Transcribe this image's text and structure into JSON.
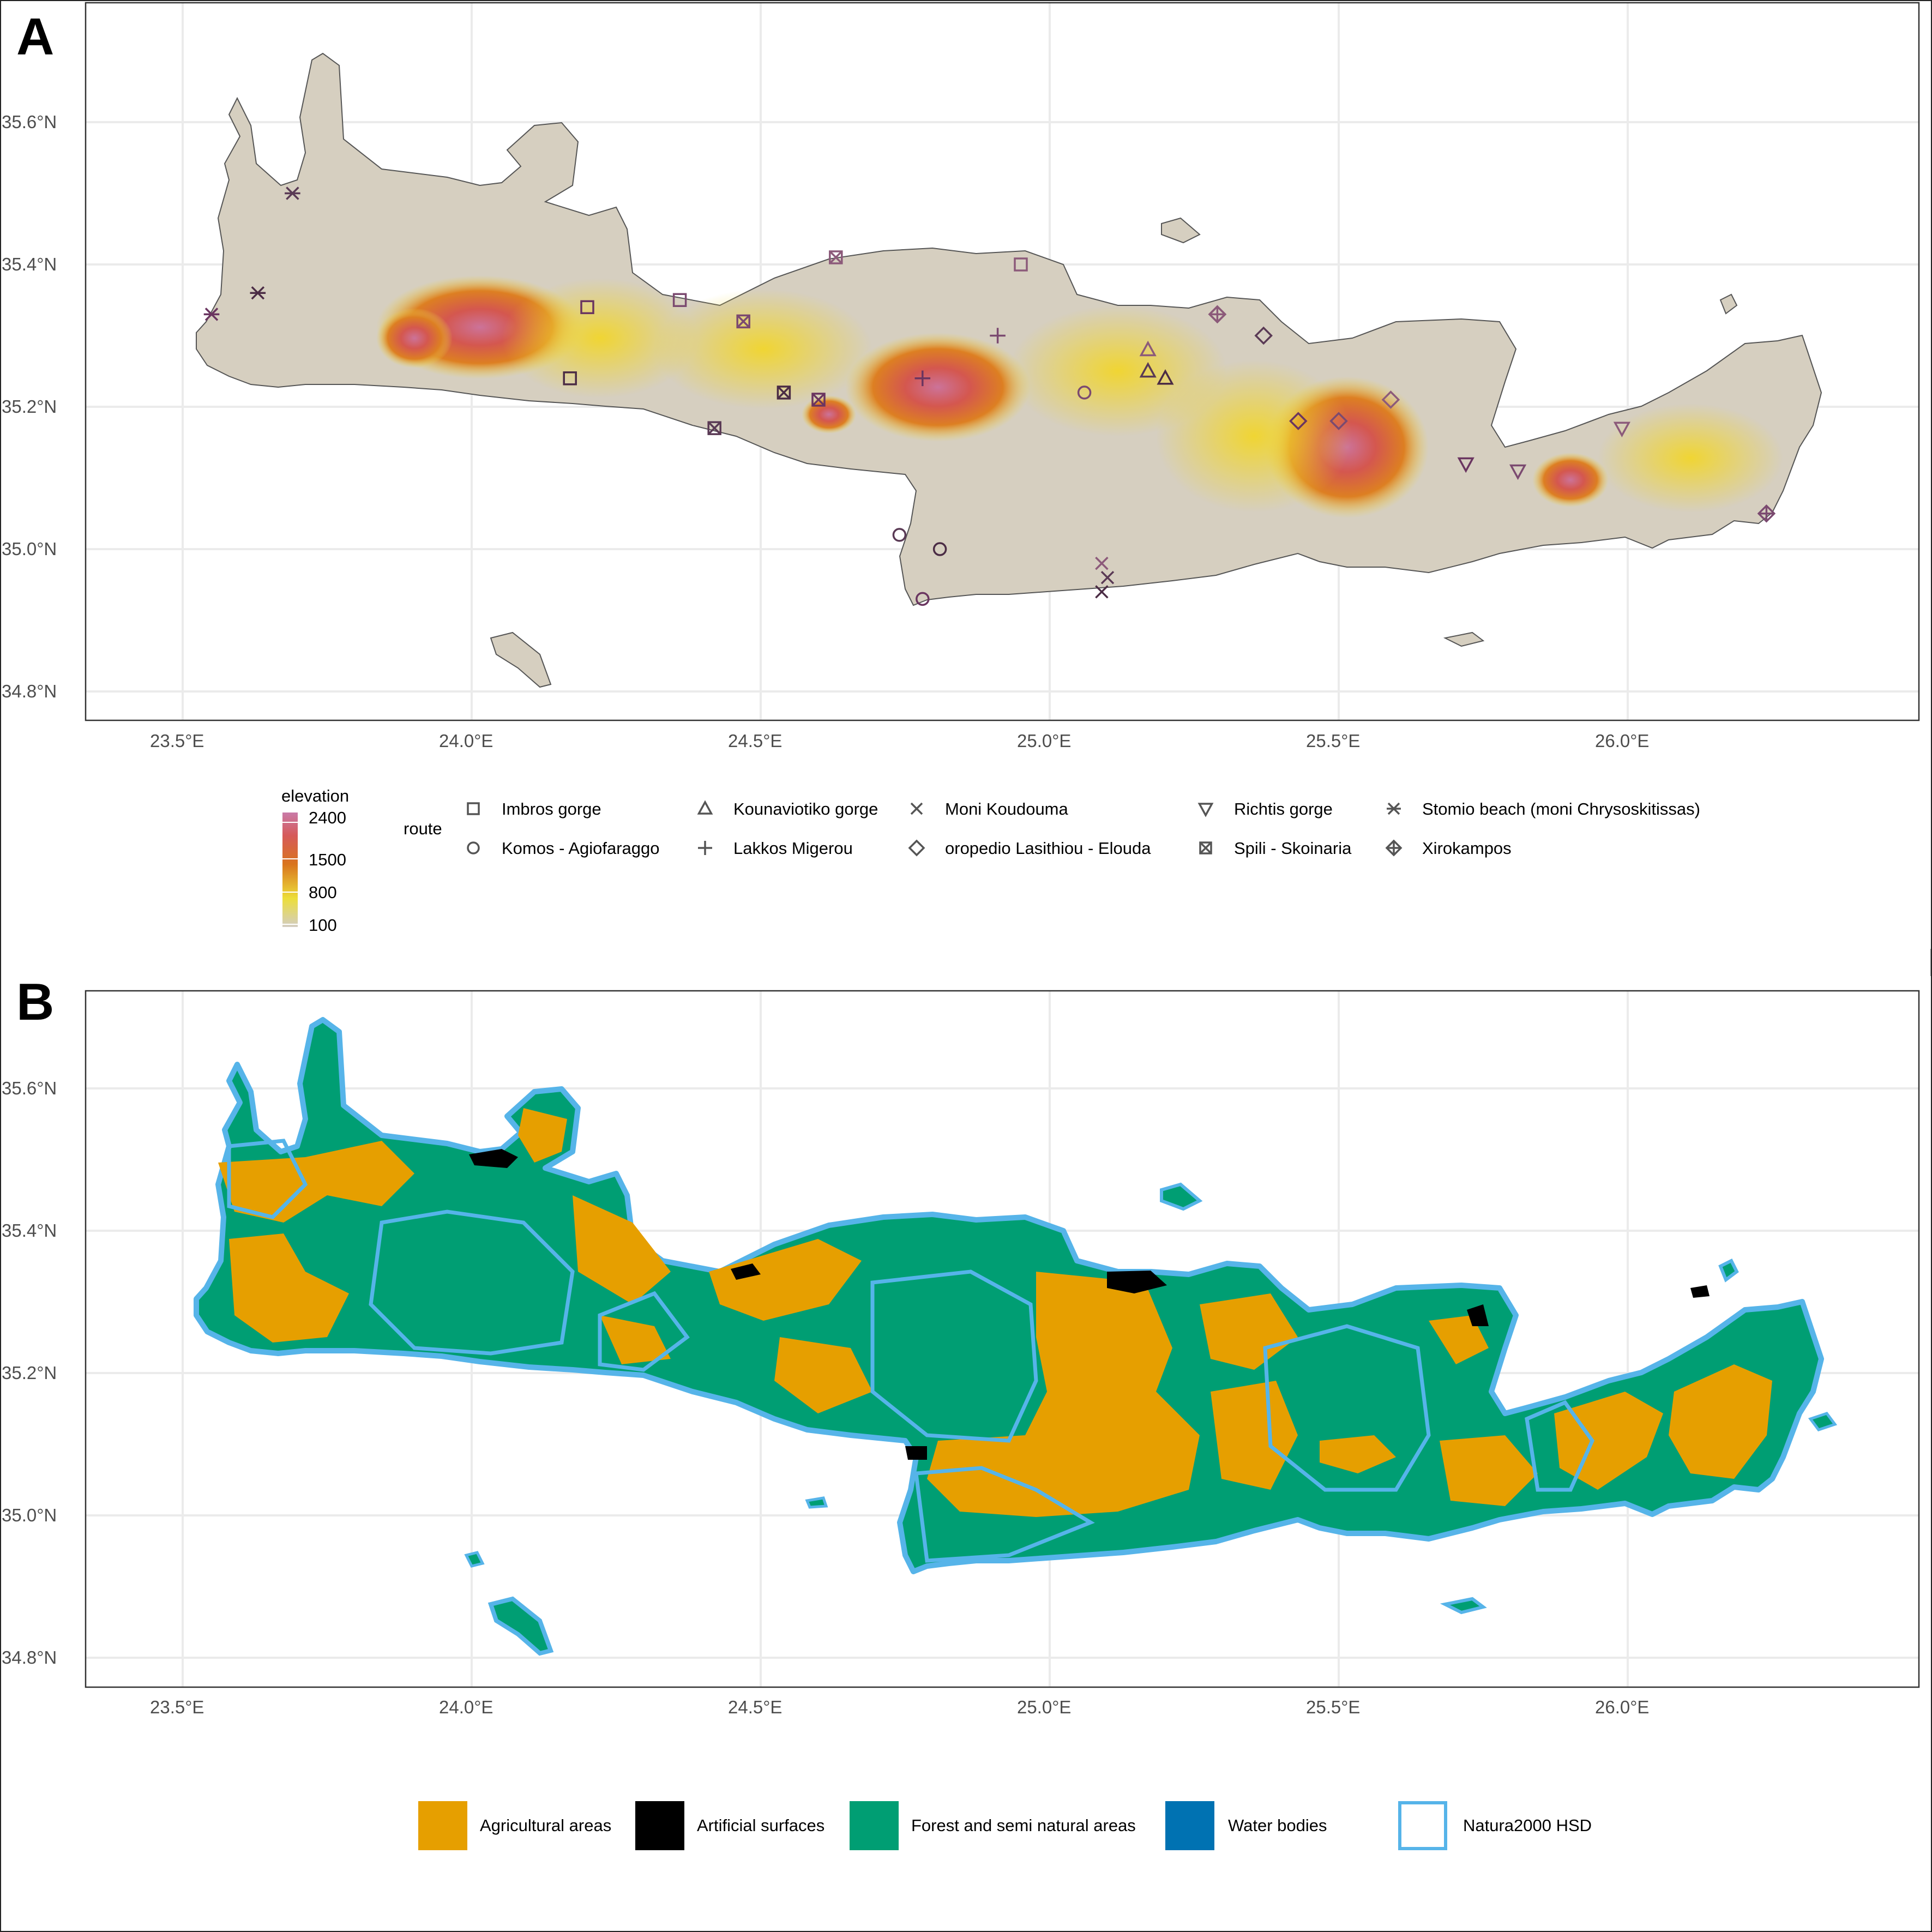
{
  "panels": [
    {
      "letter": "A"
    },
    {
      "letter": "B"
    }
  ],
  "axes": {
    "x_ticks": [
      "23.5°E",
      "24.0°E",
      "24.5°E",
      "25.0°E",
      "25.5°E",
      "26.0°E"
    ],
    "y_ticks": [
      "35.6°N",
      "35.4°N",
      "35.2°N",
      "35.0°N",
      "34.8°N"
    ]
  },
  "elevation_legend": {
    "title": "elevation",
    "labels": [
      "2400",
      "1500",
      "800",
      "100"
    ],
    "colors": [
      "#c97ba8",
      "#d65a5a",
      "#d9741e",
      "#ecde3a",
      "#d3cdc3"
    ]
  },
  "route_legend": {
    "title": "route",
    "items": [
      {
        "label": "Imbros gorge",
        "shape": "square"
      },
      {
        "label": "Komos - Agiofaraggo",
        "shape": "circle"
      },
      {
        "label": "Kounaviotiko gorge",
        "shape": "triangle-up"
      },
      {
        "label": "Lakkos Migerou",
        "shape": "plus"
      },
      {
        "label": "Moni Koudouma",
        "shape": "cross"
      },
      {
        "label": "oropedio Lasithiou - Elouda",
        "shape": "diamond"
      },
      {
        "label": "Richtis gorge",
        "shape": "triangle-down"
      },
      {
        "label": "Spili - Skoinaria",
        "shape": "square-cross"
      },
      {
        "label": "Stomio beach (moni Chrysoskitissas)",
        "shape": "asterisk"
      },
      {
        "label": "Xirokampos",
        "shape": "diamond-plus"
      }
    ]
  },
  "landcover_legend": {
    "items": [
      {
        "label": "Agricultural areas",
        "color": "#e69f00"
      },
      {
        "label": "Artificial surfaces",
        "color": "#000000"
      },
      {
        "label": "Forest and semi natural areas",
        "color": "#009e73"
      },
      {
        "label": "Water bodies",
        "color": "#0072b2"
      },
      {
        "label": "Natura2000 HSD",
        "color": "#56b4e9"
      }
    ]
  },
  "route_points": [
    {
      "route": "Imbros gorge",
      "lon": 24.17,
      "lat": 35.24
    },
    {
      "route": "Imbros gorge",
      "lon": 24.2,
      "lat": 35.34
    },
    {
      "route": "Imbros gorge",
      "lon": 24.36,
      "lat": 35.35
    },
    {
      "route": "Imbros gorge",
      "lon": 24.95,
      "lat": 35.4
    },
    {
      "route": "Komos - Agiofaraggo",
      "lon": 24.74,
      "lat": 35.02
    },
    {
      "route": "Komos - Agiofaraggo",
      "lon": 24.81,
      "lat": 35.0
    },
    {
      "route": "Komos - Agiofaraggo",
      "lon": 24.78,
      "lat": 34.93
    },
    {
      "route": "Komos - Agiofaraggo",
      "lon": 25.06,
      "lat": 35.22
    },
    {
      "route": "Kounaviotiko gorge",
      "lon": 25.17,
      "lat": 35.28
    },
    {
      "route": "Kounaviotiko gorge",
      "lon": 25.17,
      "lat": 35.25
    },
    {
      "route": "Kounaviotiko gorge",
      "lon": 25.2,
      "lat": 35.24
    },
    {
      "route": "Lakkos Migerou",
      "lon": 24.78,
      "lat": 35.24
    },
    {
      "route": "Lakkos Migerou",
      "lon": 24.91,
      "lat": 35.3
    },
    {
      "route": "Moni Koudouma",
      "lon": 25.09,
      "lat": 34.98
    },
    {
      "route": "Moni Koudouma",
      "lon": 25.1,
      "lat": 34.96
    },
    {
      "route": "Moni Koudouma",
      "lon": 25.09,
      "lat": 34.94
    },
    {
      "route": "oropedio Lasithiou - Elouda",
      "lon": 25.43,
      "lat": 35.18
    },
    {
      "route": "oropedio Lasithiou - Elouda",
      "lon": 25.5,
      "lat": 35.18
    },
    {
      "route": "oropedio Lasithiou - Elouda",
      "lon": 25.59,
      "lat": 35.21
    },
    {
      "route": "oropedio Lasithiou - Elouda",
      "lon": 25.37,
      "lat": 35.3
    },
    {
      "route": "oropedio Lasithiou - Elouda",
      "lon": 25.29,
      "lat": 35.33
    },
    {
      "route": "Richtis gorge",
      "lon": 25.72,
      "lat": 35.12
    },
    {
      "route": "Richtis gorge",
      "lon": 25.81,
      "lat": 35.11
    },
    {
      "route": "Richtis gorge",
      "lon": 25.99,
      "lat": 35.17
    },
    {
      "route": "Spili - Skoinaria",
      "lon": 24.42,
      "lat": 35.17
    },
    {
      "route": "Spili - Skoinaria",
      "lon": 24.54,
      "lat": 35.22
    },
    {
      "route": "Spili - Skoinaria",
      "lon": 24.6,
      "lat": 35.21
    },
    {
      "route": "Spili - Skoinaria",
      "lon": 24.47,
      "lat": 35.32
    },
    {
      "route": "Spili - Skoinaria",
      "lon": 24.63,
      "lat": 35.41
    },
    {
      "route": "Stomio beach (moni Chrysoskitissas)",
      "lon": 23.69,
      "lat": 35.5
    },
    {
      "route": "Stomio beach (moni Chrysoskitissas)",
      "lon": 23.63,
      "lat": 35.36
    },
    {
      "route": "Stomio beach (moni Chrysoskitissas)",
      "lon": 23.55,
      "lat": 35.33
    },
    {
      "route": "Xirokampos",
      "lon": 26.24,
      "lat": 35.05
    },
    {
      "route": "Xirokampos",
      "lon": 25.29,
      "lat": 35.33
    }
  ]
}
